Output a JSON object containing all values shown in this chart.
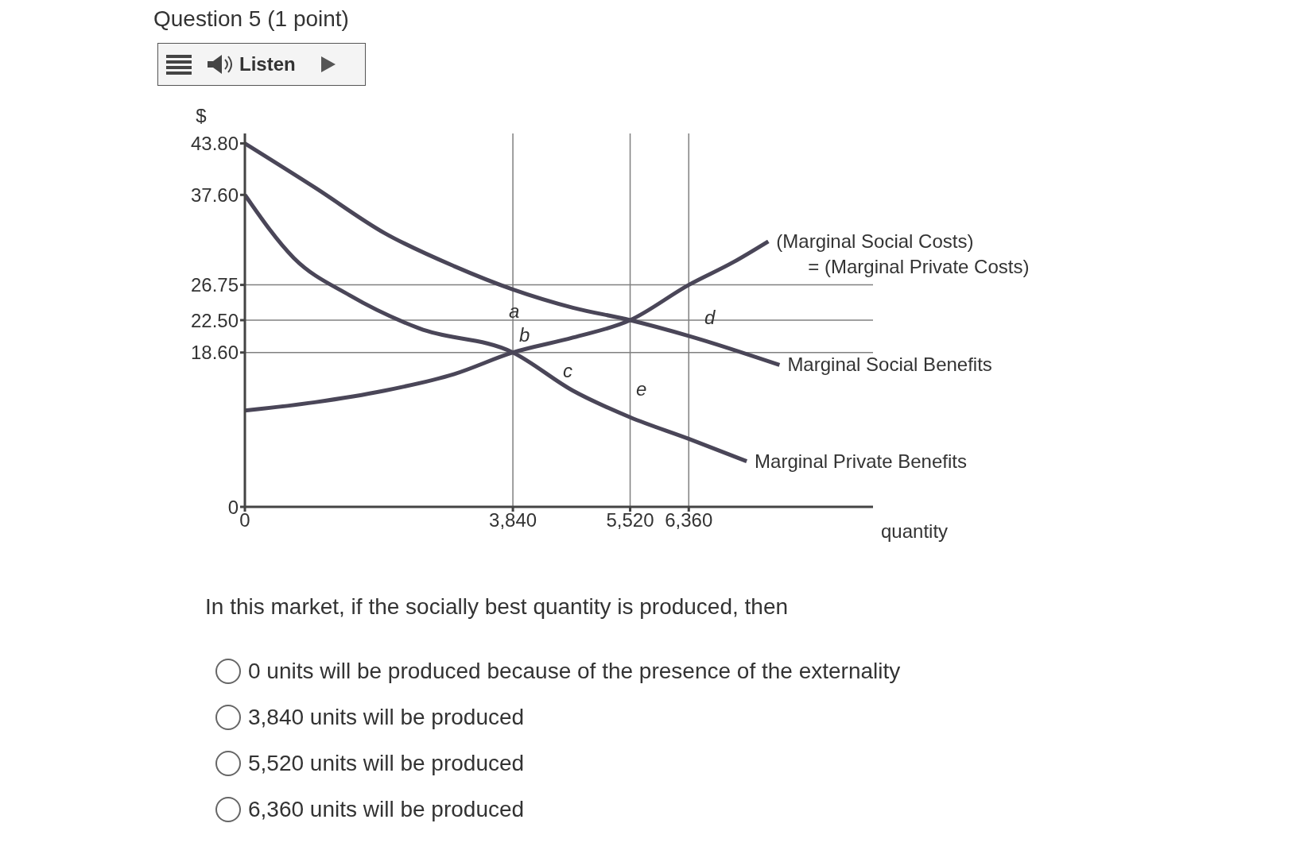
{
  "chart_data": {
    "type": "line",
    "title": "Question 5 (1 point)",
    "xlabel": "quantity",
    "ylabel": "$",
    "xlim": [
      0,
      9000
    ],
    "xticks": [
      0,
      {
        "value": 3840,
        "label": "3,840"
      },
      {
        "value": 5520,
        "label": "5,520"
      },
      {
        "value": 6360,
        "label": "6,360"
      }
    ],
    "ylim": [
      0,
      45
    ],
    "yticks": [
      0,
      {
        "value": 18.6,
        "label": "18.60"
      },
      {
        "value": 22.5,
        "label": "22.50"
      },
      26.75,
      {
        "value": 37.6,
        "label": "37.60"
      },
      {
        "value": 43.8,
        "label": "43.80"
      }
    ],
    "marker": "none",
    "line_style": "solid",
    "series": [
      {
        "name": "(Marginal Social Costs) = (Marginal Private Costs)",
        "color": "#4a4658",
        "x": [
          0,
          1000,
          2000,
          3000,
          3840,
          4700,
          5520,
          6360,
          7000,
          7500
        ],
        "values": [
          11.6,
          12.6,
          14,
          16,
          18.6,
          20.4,
          22.5,
          26.75,
          29.5,
          32
        ]
      },
      {
        "name": "Marginal Social Benefits",
        "color": "#4a4658",
        "x": [
          0,
          1000,
          2000,
          3000,
          3840,
          4700,
          5520,
          6360,
          7660
        ],
        "values": [
          43.8,
          38.5,
          33,
          29,
          26.2,
          24,
          22.5,
          20.6,
          17.1
        ]
      },
      {
        "name": "Marginal Private Benefits",
        "color": "#4a4658",
        "x": [
          0,
          700,
          1500,
          2500,
          3840,
          4700,
          5520,
          6360,
          7190
        ],
        "values": [
          37.6,
          30,
          25.5,
          21.5,
          18.6,
          14,
          10.8,
          8.2,
          5.5
        ]
      }
    ],
    "ref_lines": [
      {
        "axis": "x",
        "value": 3840,
        "color": "#808080"
      },
      {
        "axis": "x",
        "value": 5520,
        "color": "#808080"
      },
      {
        "axis": "x",
        "value": 6360,
        "color": "#808080"
      },
      {
        "axis": "y",
        "value": 26.75,
        "color": "#808080"
      },
      {
        "axis": "y",
        "value": 22.5,
        "color": "#808080"
      },
      {
        "axis": "y",
        "value": 18.6,
        "color": "#808080"
      }
    ],
    "annotations": [
      "a",
      "b",
      "c",
      "d",
      "e",
      "Listen",
      "In this market, if the socially best quantity is produced, then",
      "0 units will be produced because of the presence of the externality",
      "3,840 units will be produced",
      "5,520 units will be produced",
      "6,360 units will be produced"
    ]
  }
}
